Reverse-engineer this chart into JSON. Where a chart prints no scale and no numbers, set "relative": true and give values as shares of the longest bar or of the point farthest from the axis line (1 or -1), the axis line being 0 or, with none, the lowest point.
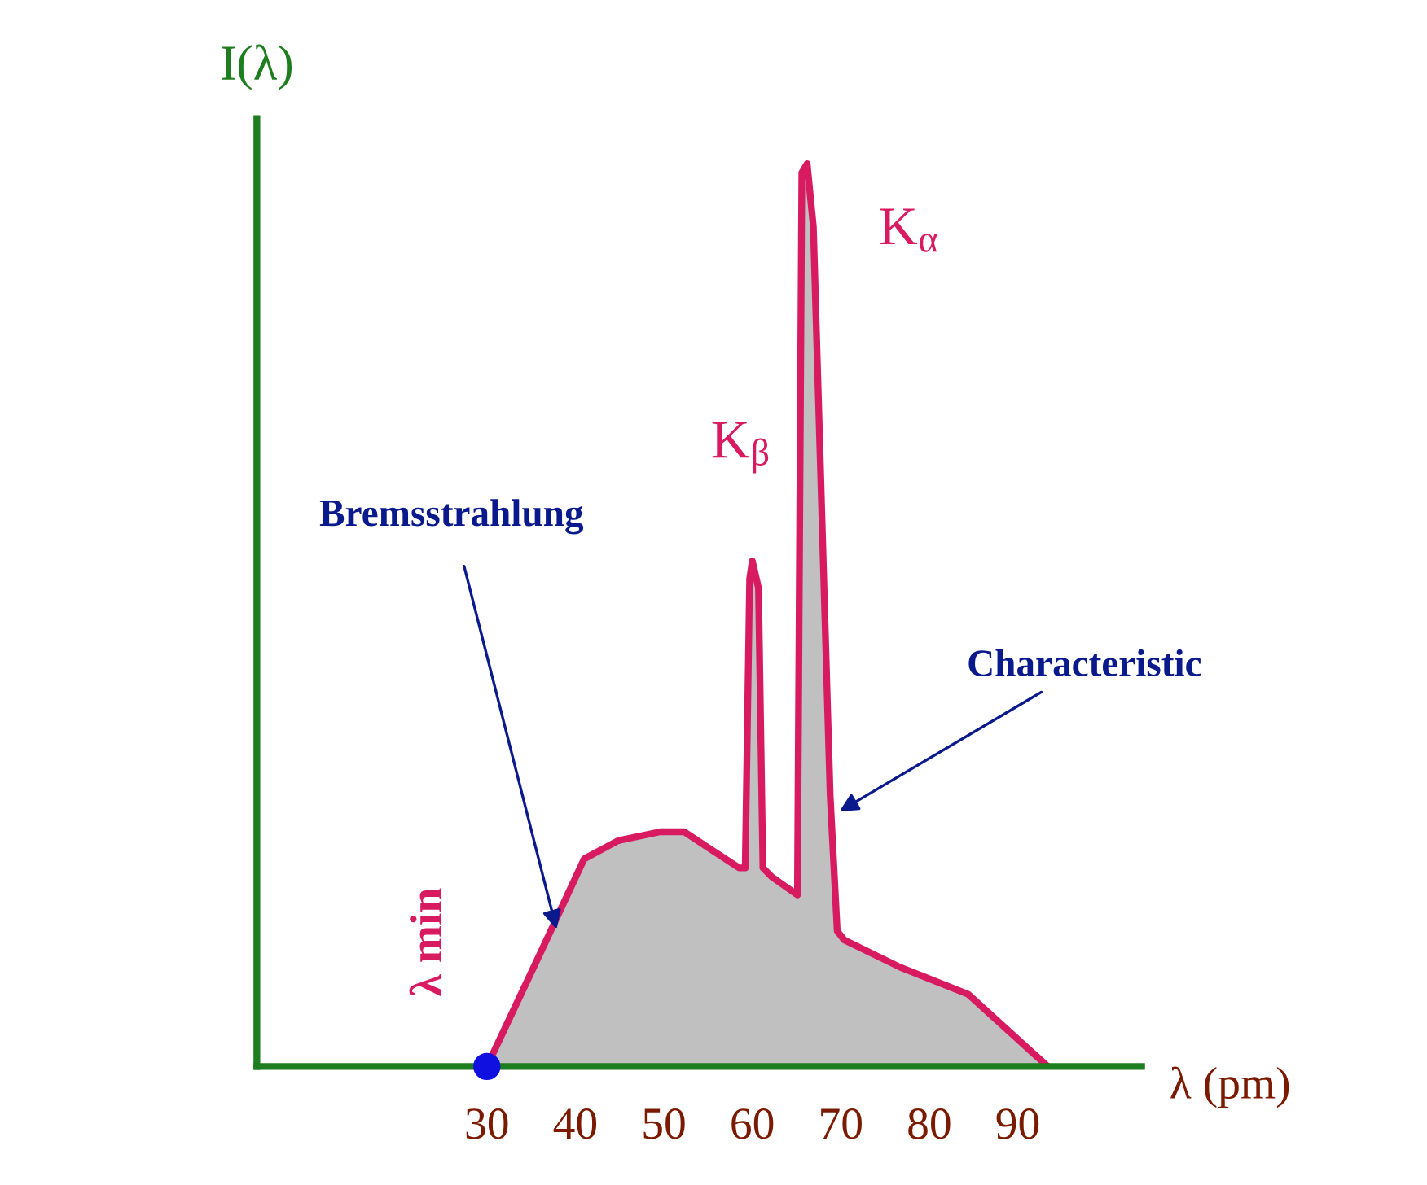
{
  "chart_data": {
    "type": "area",
    "relative": true,
    "xlabel": "λ (pm)",
    "ylabel": "I(λ)",
    "xlim": [
      4,
      104
    ],
    "xticks": [
      30,
      40,
      50,
      60,
      70,
      80,
      90
    ],
    "series": [
      {
        "color": "#d81b60",
        "x": [
          30,
          36.25,
          41,
          44.8,
          49.6,
          52.3,
          55.4,
          58.5,
          59.2,
          59.7,
          60,
          60.7,
          61.2,
          62.2,
          65.1,
          65.6,
          66.2,
          66.9,
          68.8,
          69.6,
          70.4,
          76.7,
          84.4,
          93.4
        ],
        "values": [
          0,
          0.13,
          0.23,
          0.25,
          0.26,
          0.26,
          0.24,
          0.22,
          0.22,
          0.54,
          0.56,
          0.53,
          0.22,
          0.21,
          0.19,
          0.99,
          1.0,
          0.93,
          0.3,
          0.15,
          0.14,
          0.11,
          0.08,
          0
        ]
      }
    ],
    "annotations": [
      "Bremsstrahlung",
      {
        "text": "Characteristic",
        "x": 69.4,
        "y": 0.28
      },
      {
        "text": "K$_{β}$",
        "x": 60,
        "y": 0.56
      },
      {
        "text": "K$_{α}$",
        "x": 66.2,
        "y": 1.0
      },
      {
        "text": "λ min",
        "x": 30,
        "y": 0
      }
    ]
  }
}
